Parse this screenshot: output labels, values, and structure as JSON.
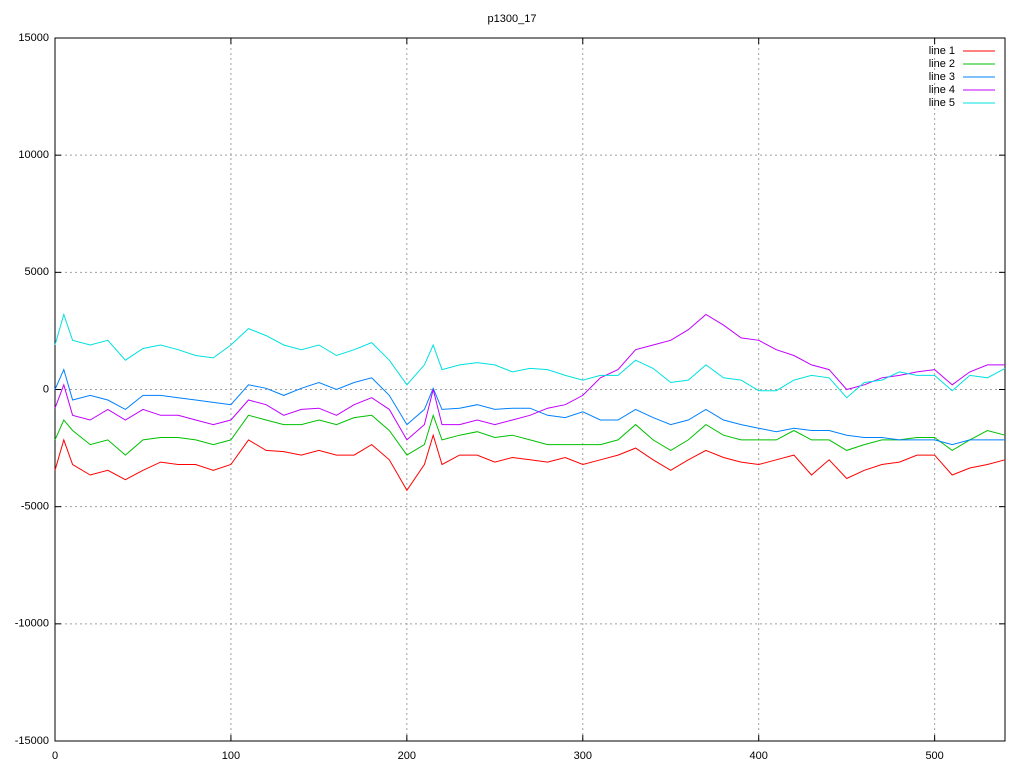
{
  "chart_data": {
    "type": "line",
    "title": "p1300_17",
    "x": [
      0,
      5,
      10,
      20,
      30,
      40,
      50,
      60,
      70,
      80,
      90,
      100,
      110,
      120,
      130,
      140,
      150,
      160,
      170,
      180,
      190,
      200,
      210,
      215,
      220,
      230,
      240,
      250,
      260,
      270,
      280,
      290,
      300,
      310,
      320,
      330,
      340,
      350,
      360,
      370,
      380,
      390,
      400,
      410,
      420,
      430,
      440,
      450,
      460,
      470,
      480,
      490,
      500,
      510,
      520,
      530,
      540
    ],
    "series": [
      {
        "name": "line 1",
        "color": "#ff0000",
        "values": [
          -3450,
          -2150,
          -3200,
          -3650,
          -3450,
          -3850,
          -3450,
          -3100,
          -3200,
          -3200,
          -3450,
          -3200,
          -2150,
          -2600,
          -2650,
          -2800,
          -2600,
          -2800,
          -2800,
          -2350,
          -3000,
          -4300,
          -3200,
          -1950,
          -3200,
          -2800,
          -2800,
          -3100,
          -2900,
          -3000,
          -3100,
          -2900,
          -3200,
          -3000,
          -2800,
          -2500,
          -3000,
          -3450,
          -3000,
          -2600,
          -2900,
          -3100,
          -3200,
          -3000,
          -2800,
          -3650,
          -3000,
          -3800,
          -3450,
          -3200,
          -3100,
          -2800,
          -2800,
          -3650,
          -3350,
          -3200,
          -3000
        ]
      },
      {
        "name": "line 2",
        "color": "#00c000",
        "values": [
          -2150,
          -1300,
          -1750,
          -2350,
          -2150,
          -2800,
          -2150,
          -2050,
          -2050,
          -2150,
          -2350,
          -2150,
          -1100,
          -1300,
          -1500,
          -1500,
          -1300,
          -1500,
          -1200,
          -1100,
          -1750,
          -2800,
          -2350,
          -1100,
          -2150,
          -1950,
          -1800,
          -2050,
          -1950,
          -2150,
          -2350,
          -2350,
          -2350,
          -2350,
          -2150,
          -1500,
          -2150,
          -2600,
          -2150,
          -1500,
          -1950,
          -2150,
          -2150,
          -2150,
          -1750,
          -2150,
          -2150,
          -2600,
          -2350,
          -2150,
          -2150,
          -2050,
          -2050,
          -2600,
          -2150,
          -1750,
          -1950
        ]
      },
      {
        "name": "line 3",
        "color": "#0080ff",
        "values": [
          0,
          850,
          -450,
          -250,
          -450,
          -850,
          -250,
          -250,
          -350,
          -450,
          -550,
          -650,
          200,
          50,
          -250,
          50,
          300,
          0,
          300,
          500,
          -250,
          -1500,
          -850,
          50,
          -850,
          -800,
          -650,
          -850,
          -800,
          -800,
          -1100,
          -1200,
          -950,
          -1300,
          -1300,
          -850,
          -1200,
          -1500,
          -1300,
          -850,
          -1300,
          -1500,
          -1650,
          -1800,
          -1650,
          -1750,
          -1750,
          -1950,
          -2050,
          -2050,
          -2150,
          -2150,
          -2150,
          -2350,
          -2150,
          -2150,
          -2150
        ]
      },
      {
        "name": "line 4",
        "color": "#c000ff",
        "values": [
          -800,
          200,
          -1100,
          -1300,
          -850,
          -1300,
          -850,
          -1100,
          -1100,
          -1300,
          -1500,
          -1300,
          -450,
          -650,
          -1100,
          -850,
          -800,
          -1100,
          -650,
          -350,
          -850,
          -2150,
          -1500,
          0,
          -1500,
          -1500,
          -1300,
          -1500,
          -1300,
          -1100,
          -800,
          -650,
          -250,
          500,
          850,
          1700,
          1900,
          2100,
          2550,
          3200,
          2750,
          2200,
          2100,
          1700,
          1450,
          1050,
          850,
          0,
          200,
          500,
          600,
          750,
          850,
          200,
          750,
          1050,
          1050
        ]
      },
      {
        "name": "line 5",
        "color": "#00e0e0",
        "values": [
          1900,
          3200,
          2100,
          1900,
          2100,
          1250,
          1750,
          1900,
          1700,
          1450,
          1350,
          1900,
          2600,
          2300,
          1900,
          1700,
          1900,
          1450,
          1700,
          2000,
          1250,
          200,
          1050,
          1900,
          850,
          1050,
          1150,
          1050,
          750,
          900,
          850,
          600,
          400,
          600,
          600,
          1250,
          900,
          300,
          400,
          1050,
          500,
          400,
          -50,
          -50,
          400,
          600,
          500,
          -350,
          300,
          400,
          750,
          600,
          600,
          -50,
          600,
          500,
          900
        ]
      }
    ],
    "xlim": [
      0,
      540
    ],
    "xticks": [
      0,
      100,
      200,
      300,
      400,
      500
    ],
    "ylim": [
      -15000,
      15000
    ],
    "yticks": [
      -15000,
      -10000,
      -5000,
      0,
      5000,
      10000,
      15000
    ],
    "grid": true,
    "legend": "top-right"
  }
}
